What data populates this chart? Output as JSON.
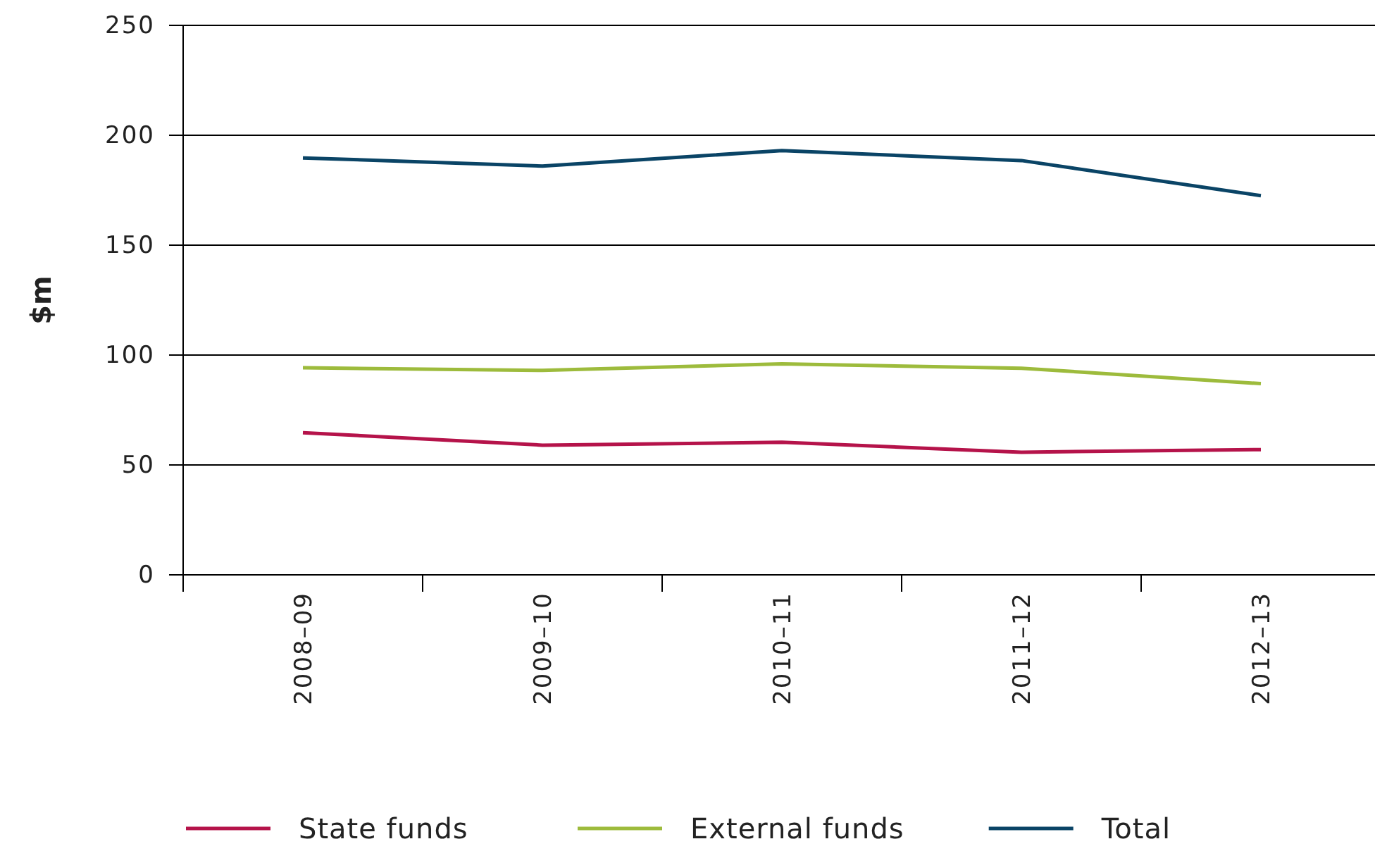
{
  "chart_data": {
    "type": "line",
    "ylabel": "$m",
    "categories": [
      "2008–09",
      "2009–10",
      "2010–11",
      "2011–12",
      "2012–13"
    ],
    "series": [
      {
        "name": "State funds",
        "color": "#b5134a",
        "values": [
          64.7,
          59,
          60.3,
          55.8,
          57
        ]
      },
      {
        "name": "External funds",
        "color": "#9dbb3c",
        "values": [
          94.2,
          93,
          96,
          94,
          87
        ]
      },
      {
        "name": "Total",
        "color": "#0a4466",
        "values": [
          189.7,
          186,
          193,
          188.5,
          172.5
        ]
      }
    ],
    "ylim": [
      0,
      250
    ],
    "yticks": [
      0,
      50,
      100,
      150,
      200,
      250
    ],
    "grid": "y",
    "legend": "bottom",
    "marker": "none",
    "line_style": "solid"
  }
}
